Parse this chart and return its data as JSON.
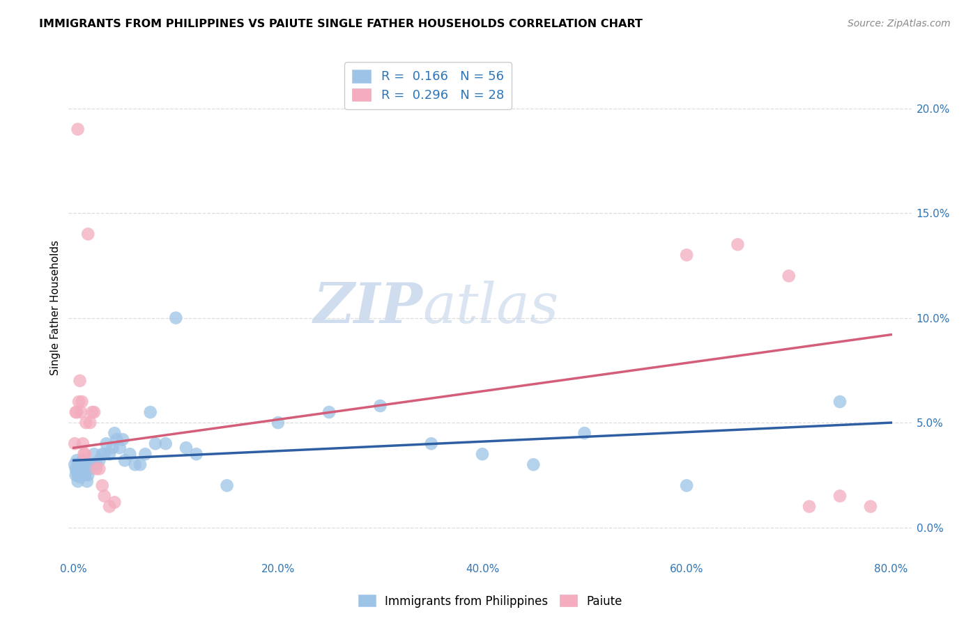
{
  "title": "IMMIGRANTS FROM PHILIPPINES VS PAIUTE SINGLE FATHER HOUSEHOLDS CORRELATION CHART",
  "source": "Source: ZipAtlas.com",
  "xlabel_tick_vals": [
    0.0,
    0.2,
    0.4,
    0.6,
    0.8
  ],
  "xlabel_ticks": [
    "0.0%",
    "20.0%",
    "40.0%",
    "60.0%",
    "80.0%"
  ],
  "ylabel_tick_vals": [
    0.0,
    0.05,
    0.1,
    0.15,
    0.2
  ],
  "ylabel_ticks": [
    "0.0%",
    "5.0%",
    "10.0%",
    "15.0%",
    "20.0%"
  ],
  "ylabel": "Single Father Households",
  "legend_label1": "Immigrants from Philippines",
  "legend_label2": "Paiute",
  "R1": "0.166",
  "N1": "56",
  "R2": "0.296",
  "N2": "28",
  "color_blue": "#9DC3E6",
  "color_pink": "#F4ACBE",
  "line_blue": "#2E5FA3",
  "line_pink": "#D45E7A",
  "watermark_zip": "ZIP",
  "watermark_atlas": "atlas",
  "scatter_blue_x": [
    0.001,
    0.002,
    0.002,
    0.003,
    0.003,
    0.004,
    0.004,
    0.005,
    0.005,
    0.006,
    0.006,
    0.007,
    0.008,
    0.008,
    0.009,
    0.01,
    0.011,
    0.012,
    0.013,
    0.014,
    0.015,
    0.016,
    0.018,
    0.02,
    0.022,
    0.025,
    0.028,
    0.03,
    0.032,
    0.035,
    0.038,
    0.04,
    0.042,
    0.045,
    0.048,
    0.05,
    0.055,
    0.06,
    0.065,
    0.07,
    0.075,
    0.08,
    0.09,
    0.1,
    0.11,
    0.12,
    0.15,
    0.2,
    0.25,
    0.3,
    0.35,
    0.4,
    0.45,
    0.5,
    0.6,
    0.75
  ],
  "scatter_blue_y": [
    0.03,
    0.028,
    0.025,
    0.032,
    0.027,
    0.025,
    0.022,
    0.03,
    0.026,
    0.028,
    0.024,
    0.03,
    0.025,
    0.028,
    0.032,
    0.03,
    0.025,
    0.028,
    0.022,
    0.025,
    0.03,
    0.028,
    0.03,
    0.035,
    0.03,
    0.032,
    0.035,
    0.035,
    0.04,
    0.035,
    0.038,
    0.045,
    0.042,
    0.038,
    0.042,
    0.032,
    0.035,
    0.03,
    0.03,
    0.035,
    0.055,
    0.04,
    0.04,
    0.1,
    0.038,
    0.035,
    0.02,
    0.05,
    0.055,
    0.058,
    0.04,
    0.035,
    0.03,
    0.045,
    0.02,
    0.06
  ],
  "scatter_pink_x": [
    0.001,
    0.002,
    0.003,
    0.004,
    0.005,
    0.006,
    0.007,
    0.008,
    0.009,
    0.01,
    0.011,
    0.012,
    0.014,
    0.016,
    0.018,
    0.02,
    0.022,
    0.025,
    0.028,
    0.03,
    0.035,
    0.04,
    0.6,
    0.65,
    0.7,
    0.72,
    0.75,
    0.78
  ],
  "scatter_pink_y": [
    0.04,
    0.055,
    0.055,
    0.19,
    0.06,
    0.07,
    0.055,
    0.06,
    0.04,
    0.035,
    0.035,
    0.05,
    0.14,
    0.05,
    0.055,
    0.055,
    0.028,
    0.028,
    0.02,
    0.015,
    0.01,
    0.012,
    0.13,
    0.135,
    0.12,
    0.01,
    0.015,
    0.01
  ],
  "xlim": [
    -0.005,
    0.82
  ],
  "ylim": [
    -0.015,
    0.225
  ],
  "blue_line_x": [
    0.0,
    0.8
  ],
  "blue_line_y": [
    0.032,
    0.05
  ],
  "pink_line_x": [
    0.0,
    0.8
  ],
  "pink_line_y": [
    0.038,
    0.092
  ]
}
